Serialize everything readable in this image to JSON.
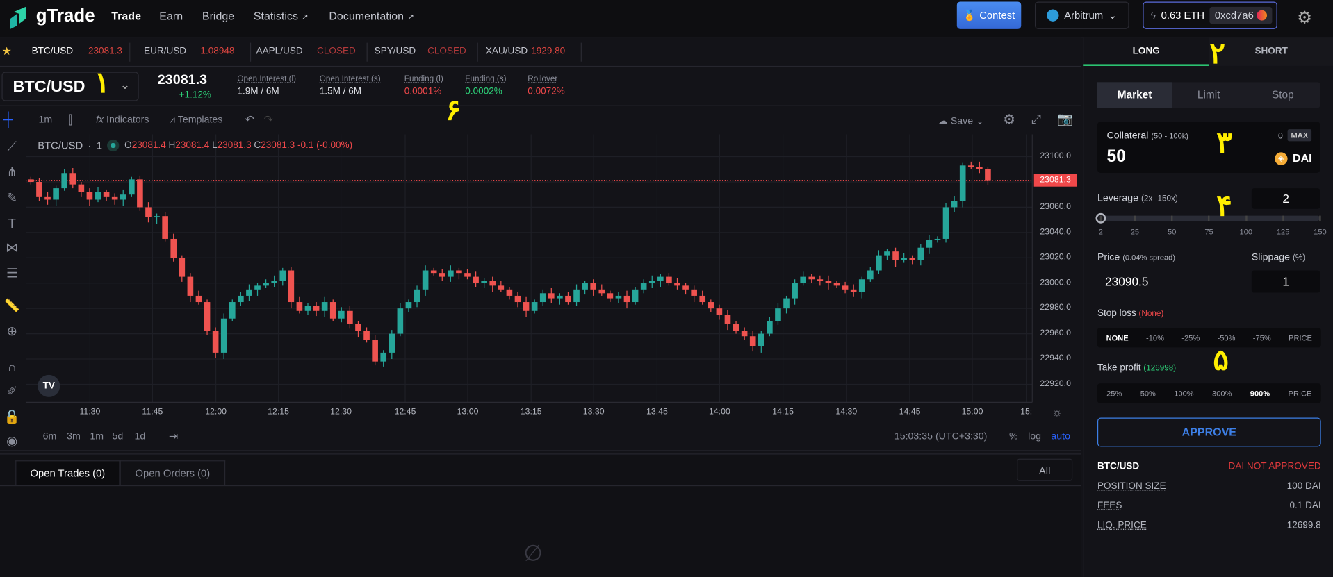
{
  "header": {
    "brand": "gTrade",
    "nav": [
      {
        "label": "Trade",
        "external": false
      },
      {
        "label": "Earn",
        "external": false
      },
      {
        "label": "Bridge",
        "external": false
      },
      {
        "label": "Statistics",
        "external": true
      },
      {
        "label": "Documentation",
        "external": true
      }
    ],
    "contest_label": "Contest",
    "network": "Arbitrum",
    "balance": "0.63 ETH",
    "address": "0xcd7a6"
  },
  "ticker": [
    {
      "pair": "BTC/USD",
      "price": "23081.3"
    },
    {
      "pair": "EUR/USD",
      "price": "1.08948"
    },
    {
      "pair": "AAPL/USD",
      "price": "CLOSED"
    },
    {
      "pair": "SPY/USD",
      "price": "CLOSED"
    },
    {
      "pair": "XAU/USD",
      "price": "1929.80"
    }
  ],
  "market": {
    "pair": "BTC/USD",
    "price": "23081.3",
    "change": "+1.12%",
    "stats": [
      {
        "label": "Open Interest (l)",
        "value": "1.9M / 6M",
        "color": "#e0e2e8"
      },
      {
        "label": "Open Interest (s)",
        "value": "1.5M / 6M",
        "color": "#e0e2e8"
      },
      {
        "label": "Funding (l)",
        "value": "0.0001%",
        "color": "#f0484a"
      },
      {
        "label": "Funding (s)",
        "value": "0.0002%",
        "color": "#2ed47a"
      },
      {
        "label": "Rollover",
        "value": "0.0072%",
        "color": "#f0484a"
      }
    ]
  },
  "chart_toolbar": {
    "interval": "1m",
    "indicators": "Indicators",
    "templates": "Templates",
    "save": "Save"
  },
  "legend": {
    "symbol": "BTC/USD",
    "interval": "1",
    "o": "23081.4",
    "h": "23081.4",
    "l": "23081.3",
    "c": "23081.3",
    "change": "-0.1 (-0.00%)"
  },
  "chart_data": {
    "type": "candlestick",
    "interval_minutes_between_points": 2,
    "start_time": "11:16",
    "closes": [
      23080,
      23068,
      23066,
      23075,
      23087,
      23078,
      23072,
      23066,
      23072,
      23068,
      23066,
      23070,
      23082,
      23060,
      23052,
      23053,
      23035,
      23020,
      23005,
      22990,
      22985,
      22962,
      22945,
      22972,
      22985,
      22990,
      22995,
      22998,
      23000,
      23002,
      23010,
      22985,
      22978,
      22982,
      22978,
      22985,
      22972,
      22978,
      22968,
      22962,
      22955,
      22938,
      22945,
      22960,
      22980,
      22985,
      22995,
      23010,
      23008,
      23005,
      23010,
      23008,
      23005,
      23000,
      23002,
      22998,
      22995,
      22990,
      22985,
      22978,
      22985,
      22992,
      22988,
      22990,
      22985,
      22995,
      23000,
      22995,
      22992,
      22988,
      22990,
      22985,
      22995,
      23000,
      23002,
      23005,
      23000,
      22998,
      22995,
      22990,
      22985,
      22980,
      22975,
      22968,
      22962,
      22958,
      22950,
      22960,
      22970,
      22980,
      22988,
      23000,
      23005,
      23003,
      23002,
      23000,
      22998,
      22995,
      22993,
      23003,
      23010,
      23022,
      23025,
      23018,
      23020,
      23018,
      23028,
      23034,
      23035,
      23060,
      23065,
      23093,
      23092,
      23090,
      23081.3
    ],
    "last_price": "23081.3",
    "y_ticks": [
      "23100.0",
      "23080.0",
      "23060.0",
      "23040.0",
      "23020.0",
      "23000.0",
      "22980.0",
      "22960.0",
      "22940.0",
      "22920.0"
    ],
    "y_tick_values": [
      23100,
      23080,
      23060,
      23040,
      23020,
      23000,
      22980,
      22960,
      22940,
      22920
    ],
    "x_ticks": [
      "11:30",
      "11:45",
      "12:00",
      "12:15",
      "12:30",
      "12:45",
      "13:00",
      "13:15",
      "13:30",
      "13:45",
      "14:00",
      "14:15",
      "14:30",
      "14:45",
      "15:00",
      "15:"
    ],
    "up_color": "#26a69a",
    "down_color": "#ef5350",
    "grid": true
  },
  "chart_bottom": {
    "ranges": [
      "6m",
      "3m",
      "1m",
      "5d",
      "1d"
    ],
    "clock": "15:03:35 (UTC+3:30)",
    "percent": "%",
    "log": "log",
    "auto": "auto"
  },
  "trades": {
    "tabs": [
      "Open Trades (0)",
      "Open Orders (0)"
    ],
    "filter": "All"
  },
  "panel": {
    "sides": [
      "LONG",
      "SHORT"
    ],
    "order_types": [
      "Market",
      "Limit",
      "Stop"
    ],
    "collateral": {
      "label": "Collateral",
      "range": "(50 - 100k)",
      "value": "50",
      "balance": "0",
      "max": "MAX",
      "token": "DAI"
    },
    "leverage": {
      "label": "Leverage",
      "range": "(2x- 150x)",
      "value": "2",
      "ticks": [
        "2",
        "25",
        "50",
        "75",
        "100",
        "125",
        "150"
      ],
      "min": 2,
      "max": 150
    },
    "price": {
      "label": "Price",
      "spread": "(0.04% spread)",
      "value": "23090.5"
    },
    "slippage": {
      "label": "Slippage",
      "unit": "(%)",
      "value": "1"
    },
    "stop_loss": {
      "label": "Stop loss",
      "current": "(None)",
      "options": [
        "NONE",
        "-10%",
        "-25%",
        "-50%",
        "-75%",
        "PRICE"
      ],
      "selected": 0
    },
    "take_profit": {
      "label": "Take profit",
      "current": "(126998)",
      "options": [
        "25%",
        "50%",
        "100%",
        "300%",
        "900%",
        "PRICE"
      ],
      "selected": 4
    },
    "approve": "APPROVE",
    "summary": {
      "pair": "BTC/USD",
      "status": "DAI NOT APPROVED",
      "rows": [
        {
          "label": "POSITION SIZE",
          "value": "100 DAI"
        },
        {
          "label": "FEES",
          "value": "0.1 DAI"
        },
        {
          "label": "LIQ. PRICE",
          "value": "12699.8"
        }
      ]
    }
  },
  "annotations": [
    "١",
    "٢",
    "٣",
    "۴",
    "۵",
    "۶"
  ]
}
